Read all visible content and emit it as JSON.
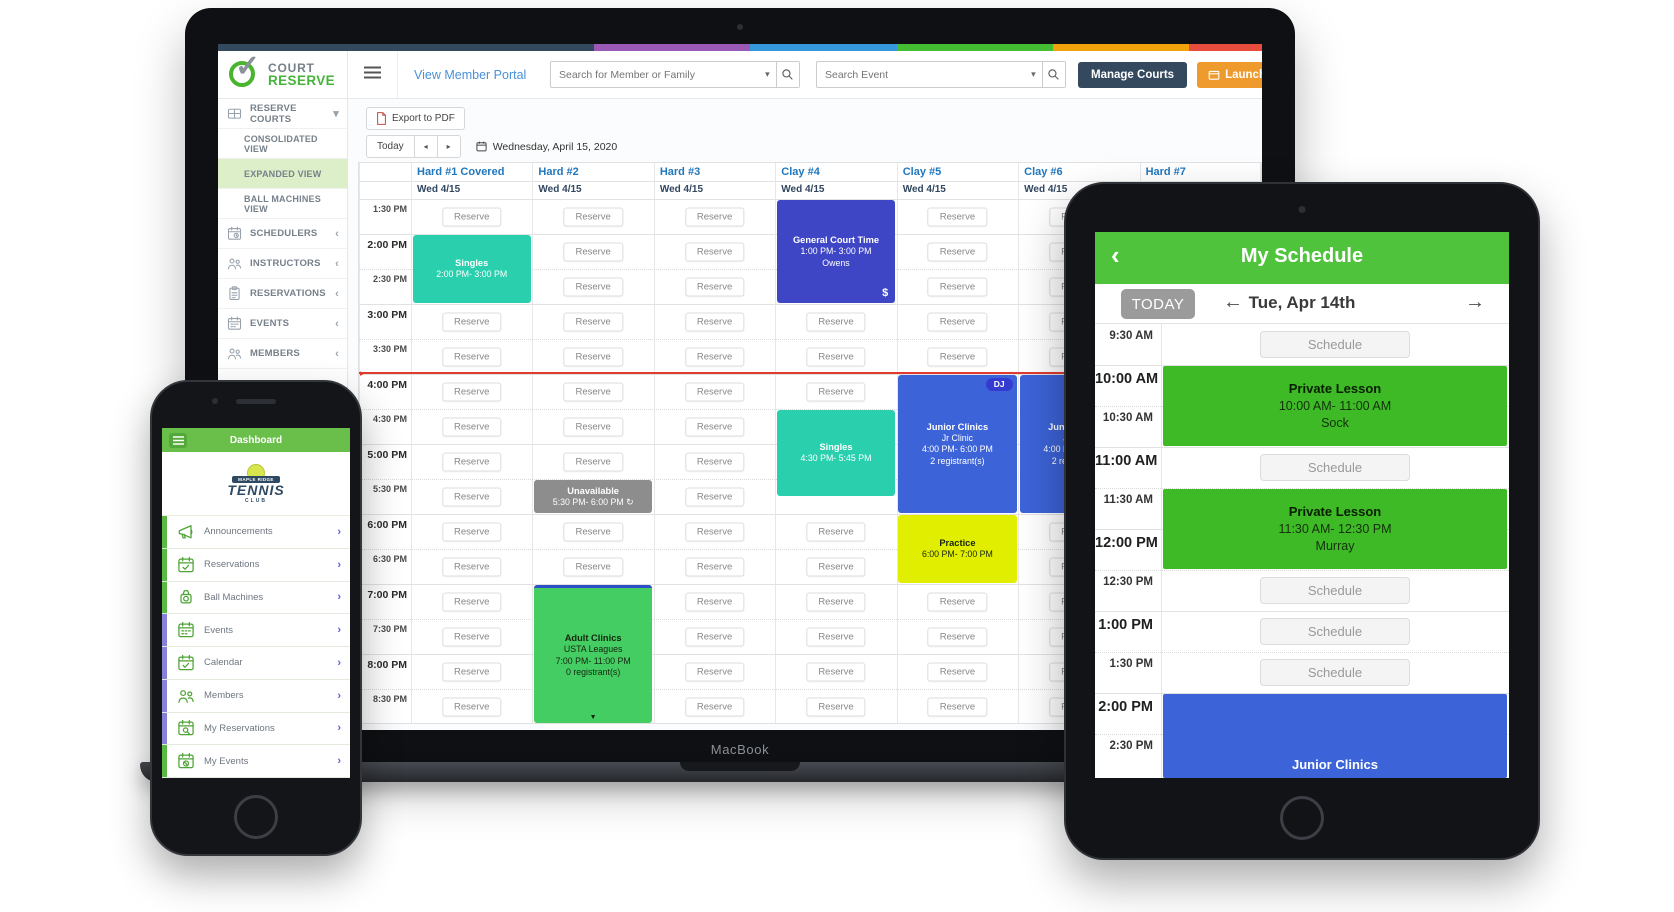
{
  "palette": {
    "stripe_colors": [
      "#34495e",
      "#9b59b6",
      "#3498db",
      "#44bd32",
      "#f0a30a",
      "#e74c3c"
    ],
    "brand_green": "#46b43a",
    "link_blue": "#4a90d9",
    "navy": "#34495e",
    "orange": "#ef9a2d",
    "court_header_blue": "#2177bd",
    "active_item_bg": "#dcefc8",
    "red_line": "#e23a2e",
    "event_colors": {
      "teal": "#2ad0ae",
      "indigo": "#3e46c6",
      "blue": "#3c63d8",
      "yellow": "#e2ee00",
      "gray": "#8d8d8d",
      "green": "#43cd63"
    },
    "tablet_header_green": "#4fc33c",
    "tablet_event_green": "#3eba27",
    "phone_header_green": "#6abf4b",
    "strip_green": "#5cb845",
    "strip_purple": "#8781d8"
  },
  "laptop": {
    "brand": "MacBook",
    "header": {
      "logo_line1": "COURT",
      "logo_line2": "RESERVE",
      "view_member_portal": "View Member Portal",
      "search_member_placeholder": "Search for Member or Family",
      "search_event_placeholder": "Search Event",
      "manage_courts_label": "Manage Courts",
      "launch_label": "Launch Portal"
    },
    "sidebar": {
      "items": [
        {
          "label": "RESERVE COURTS",
          "icon": "courts-grid-icon",
          "chevron": "down",
          "type": "parent"
        },
        {
          "label": "CONSOLIDATED VIEW",
          "type": "sub"
        },
        {
          "label": "EXPANDED VIEW",
          "type": "sub",
          "active": true
        },
        {
          "label": "BALL MACHINES VIEW",
          "type": "sub"
        },
        {
          "label": "SCHEDULERS",
          "icon": "schedulers-icon",
          "chevron": "left",
          "type": "parent"
        },
        {
          "label": "INSTRUCTORS",
          "icon": "instructors-icon",
          "chevron": "left",
          "type": "parent"
        },
        {
          "label": "RESERVATIONS",
          "icon": "reservations-icon",
          "chevron": "left",
          "type": "parent"
        },
        {
          "label": "EVENTS",
          "icon": "events-icon",
          "chevron": "left",
          "type": "parent"
        },
        {
          "label": "MEMBERS",
          "icon": "members-icon",
          "chevron": "left",
          "type": "parent"
        }
      ]
    },
    "toolbar": {
      "export_label": "Export to PDF",
      "today_label": "Today",
      "prev_icon": "left-arrow",
      "next_icon": "right-arrow",
      "date_label": "Wednesday, April 15, 2020"
    },
    "calendar": {
      "courts": [
        "Hard #1 Covered",
        "Hard #2",
        "Hard #3",
        "Clay #4",
        "Clay #5",
        "Clay #6",
        "Hard #7"
      ],
      "column_date": "Wed 4/15",
      "times": [
        "1:30 PM",
        "2:00 PM",
        "2:30 PM",
        "3:00 PM",
        "3:30 PM",
        "4:00 PM",
        "4:30 PM",
        "5:00 PM",
        "5:30 PM",
        "6:00 PM",
        "6:30 PM",
        "7:00 PM",
        "7:30 PM",
        "8:00 PM",
        "8:30 PM"
      ],
      "reserve_label": "Reserve",
      "current_time_row": 5,
      "events": [
        {
          "court": 0,
          "row": 1,
          "span": 2,
          "color": "teal",
          "lines": [
            "Singles",
            "2:00 PM- 3:00 PM"
          ]
        },
        {
          "court": 3,
          "row": 0,
          "span": 3,
          "color": "indigo",
          "lines": [
            "General Court Time",
            "1:00 PM- 3:00 PM",
            "Owens"
          ],
          "corner_badge": "$"
        },
        {
          "court": 3,
          "row": 6,
          "span": 2.5,
          "color": "teal",
          "lines": [
            "Singles",
            "4:30 PM- 5:45 PM"
          ]
        },
        {
          "court": 4,
          "row": 5,
          "span": 4,
          "color": "blue",
          "lines": [
            "Junior Clinics",
            "Jr Clinic",
            "4:00 PM- 6:00 PM",
            "2 registrant(s)"
          ],
          "top_badge": "DJ"
        },
        {
          "court": 5,
          "row": 5,
          "span": 4,
          "color": "blue",
          "lines": [
            "Junior Clinics",
            "Jr Clinic",
            "4:00 PM- 6:00 PM",
            "2 registrant(s)"
          ]
        },
        {
          "court": 4,
          "row": 9,
          "span": 2,
          "color": "yellow",
          "dark_text": true,
          "lines": [
            "Practice",
            "6:00 PM- 7:00 PM"
          ]
        },
        {
          "court": 1,
          "row": 8,
          "span": 1,
          "color": "gray",
          "lines": [
            "Unavailable",
            "5:30 PM- 6:00 PM ↻"
          ]
        },
        {
          "court": 1,
          "row": 11,
          "span": 4,
          "color": "green",
          "dark_text": true,
          "lines": [
            "Adult Clinics",
            "USTA Leagues",
            "7:00 PM- 11:00 PM",
            "0 registrant(s)"
          ],
          "continues": true,
          "top_border": true
        }
      ]
    }
  },
  "phone": {
    "header_title": "Dashboard",
    "logo": {
      "top": "MAPLE RIDGE",
      "main": "TENNIS",
      "bottom": "CLUB"
    },
    "chevron": "›",
    "menu": [
      {
        "label": "Announcements",
        "icon": "megaphone-icon",
        "strip": "green"
      },
      {
        "label": "Reservations",
        "icon": "reservations-calendar-icon",
        "strip": "green"
      },
      {
        "label": "Ball Machines",
        "icon": "ball-machine-icon",
        "strip": "green"
      },
      {
        "label": "Events",
        "icon": "events-icon",
        "strip": "purple"
      },
      {
        "label": "Calendar",
        "icon": "calendar-check-icon",
        "strip": "purple"
      },
      {
        "label": "Members",
        "icon": "members-icon",
        "strip": "purple"
      },
      {
        "label": "My Reservations",
        "icon": "my-reservations-icon",
        "strip": "purple"
      },
      {
        "label": "My Events",
        "icon": "my-events-icon",
        "strip": "green"
      }
    ]
  },
  "tablet": {
    "header": {
      "back": "‹",
      "title": "My Schedule"
    },
    "toolbar": {
      "today_label": "TODAY",
      "prev": "←",
      "date_label": "Tue, Apr 14th",
      "next": "→"
    },
    "times": [
      "9:30 AM",
      "10:00 AM",
      "10:30 AM",
      "11:00 AM",
      "11:30 AM",
      "12:00 PM",
      "12:30 PM",
      "1:00 PM",
      "1:30 PM",
      "2:00 PM",
      "2:30 PM"
    ],
    "schedule_label": "Schedule",
    "schedule_rows": [
      0,
      3,
      6,
      7,
      8
    ],
    "events": [
      {
        "row": 1,
        "span": 2,
        "color": "green",
        "lines": [
          "Private Lesson",
          "10:00 AM- 11:00 AM",
          "Sock"
        ]
      },
      {
        "row": 4,
        "span": 2,
        "color": "green",
        "lines": [
          "Private Lesson",
          "11:30 AM- 12:30 PM",
          "Murray"
        ]
      },
      {
        "row": 9,
        "to_bottom": true,
        "color": "blue",
        "lines": [
          "Junior Clinics"
        ]
      }
    ]
  }
}
